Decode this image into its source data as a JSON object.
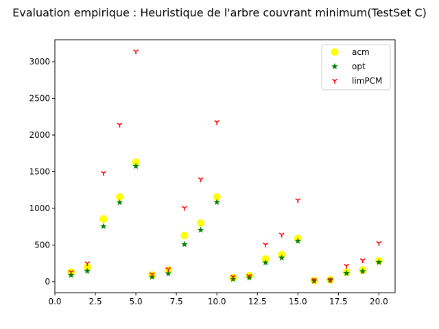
{
  "chart_data": {
    "type": "scatter",
    "title": "Evaluation empirique : Heuristique de l'arbre couvrant minimum(TestSet C)",
    "xlabel": "",
    "ylabel": "",
    "xlim": [
      -0.0,
      21.0
    ],
    "ylim": [
      -150,
      3300
    ],
    "x_ticks": [
      "0.0",
      "2.5",
      "5.0",
      "7.5",
      "10.0",
      "12.5",
      "15.0",
      "17.5",
      "20.0"
    ],
    "y_ticks": [
      "0",
      "500",
      "1000",
      "1500",
      "2000",
      "2500",
      "3000"
    ],
    "grid": false,
    "legend_position": "top-right",
    "x": [
      1,
      2,
      3,
      4,
      5,
      6,
      7,
      8,
      9,
      10,
      11,
      12,
      13,
      14,
      15,
      16,
      17,
      18,
      19,
      20
    ],
    "series": [
      {
        "name": "acm",
        "marker": "circle",
        "color": "#ffff00",
        "values": [
          130,
          200,
          855,
          1155,
          1630,
          90,
          160,
          630,
          800,
          1155,
          55,
          80,
          310,
          370,
          590,
          15,
          25,
          130,
          160,
          285
        ]
      },
      {
        "name": "opt",
        "marker": "star",
        "color": "#008000",
        "values": [
          90,
          145,
          755,
          1080,
          1575,
          65,
          110,
          510,
          705,
          1085,
          35,
          55,
          260,
          325,
          555,
          10,
          20,
          115,
          140,
          265
        ]
      },
      {
        "name": "limPCM",
        "marker": "tri_down",
        "color": "#ff0000",
        "values": [
          130,
          250,
          1480,
          2140,
          3140,
          100,
          170,
          1005,
          1395,
          2175,
          65,
          75,
          505,
          640,
          1110,
          20,
          25,
          215,
          290,
          525
        ]
      }
    ]
  }
}
